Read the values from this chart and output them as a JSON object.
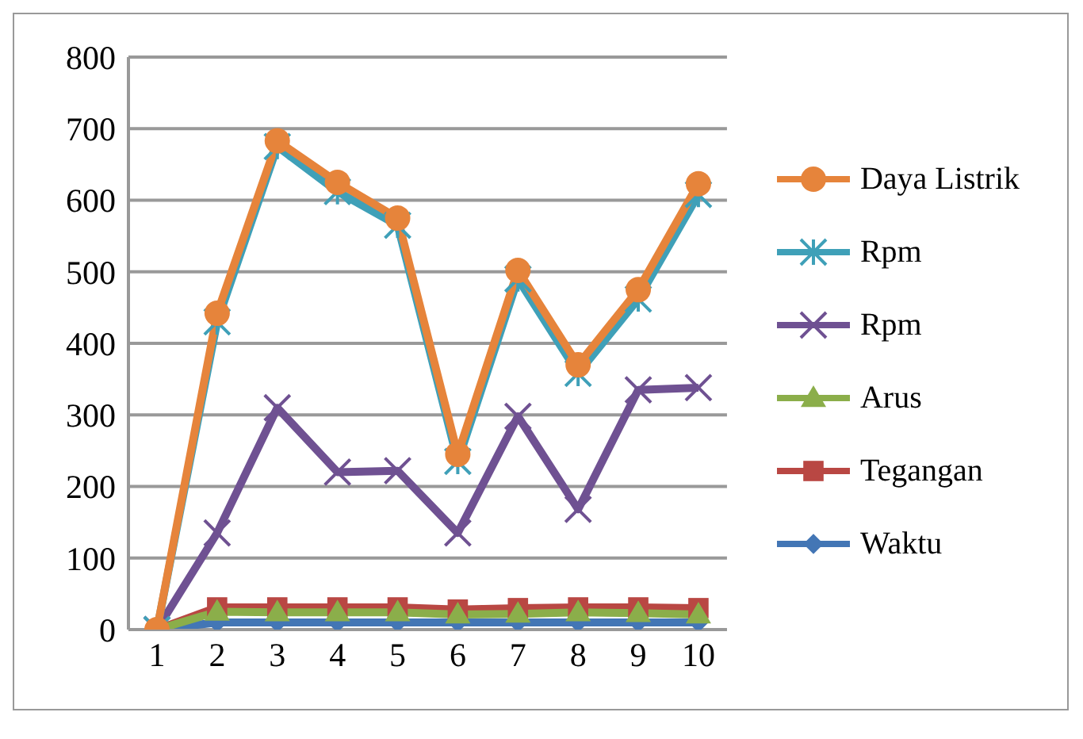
{
  "chart_data": {
    "type": "line",
    "categories": [
      "1",
      "2",
      "3",
      "4",
      "5",
      "6",
      "7",
      "8",
      "9",
      "10"
    ],
    "series": [
      {
        "name": "Waktu",
        "color": "#4376b5",
        "marker": "diamond",
        "values": [
          0,
          10,
          10,
          10,
          10,
          10,
          10,
          10,
          10,
          10
        ]
      },
      {
        "name": "Tegangan",
        "color": "#b94743",
        "marker": "square",
        "values": [
          0,
          31,
          31,
          31,
          31,
          28,
          30,
          31,
          31,
          30
        ]
      },
      {
        "name": "Arus",
        "color": "#8bae4a",
        "marker": "triangle",
        "values": [
          0,
          25,
          24,
          24,
          24,
          21,
          22,
          24,
          23,
          21
        ]
      },
      {
        "name": "Rpm",
        "color": "#6f5192",
        "marker": "cross",
        "values": [
          0,
          135,
          310,
          220,
          222,
          135,
          298,
          168,
          335,
          338
        ]
      },
      {
        "name": "Rpm",
        "color": "#3fa0b8",
        "marker": "cross",
        "values": [
          0,
          430,
          675,
          612,
          565,
          235,
          490,
          358,
          462,
          608
        ]
      },
      {
        "name": "Daya Listrik",
        "color": "#e6843b",
        "marker": "circle",
        "values": [
          0,
          442,
          683,
          625,
          575,
          245,
          502,
          370,
          475,
          623
        ]
      }
    ],
    "ylim": [
      0,
      800
    ],
    "yticks": [
      0,
      100,
      200,
      300,
      400,
      500,
      600,
      700,
      800
    ],
    "grid": "y",
    "legend": "right"
  }
}
